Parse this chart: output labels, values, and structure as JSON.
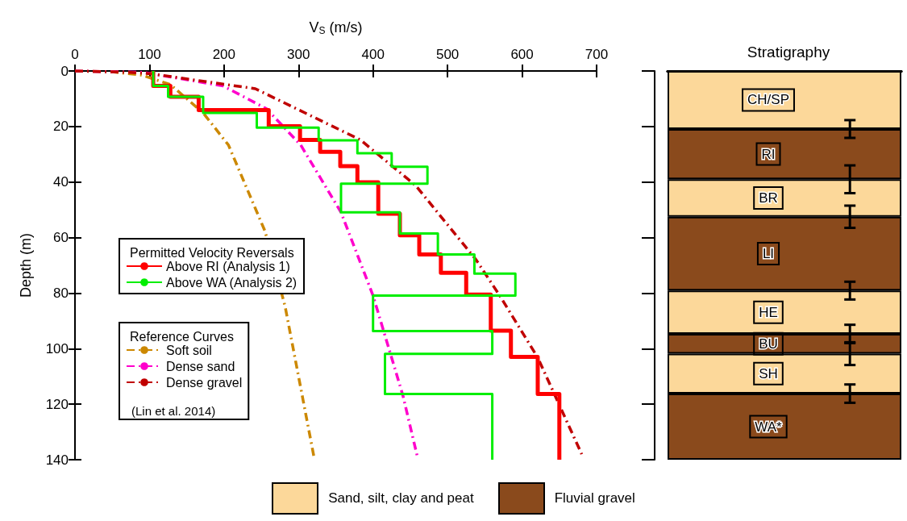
{
  "chart_data": [
    {
      "type": "line",
      "xlabel": "V$_{S}$ (m/s)",
      "ylabel": "Depth (m)",
      "xlim": [
        0,
        700
      ],
      "xticks": [
        0,
        100,
        200,
        300,
        400,
        500,
        600,
        700
      ],
      "ylim": [
        140,
        0
      ],
      "yticks": [
        0,
        20,
        40,
        60,
        80,
        100,
        120,
        140
      ],
      "grid": false,
      "marker": "none",
      "legend": "left",
      "legend_title": "Permitted Velocity Reversals",
      "annotations": [
        "Reference Curves",
        "(Lin et al. 2014)"
      ],
      "series": [
        {
          "name": "Above RI (Analysis 1)",
          "color": "#ff0000",
          "line_style": "solid",
          "x": [
            105,
            105,
            128,
            128,
            166,
            166,
            260,
            260,
            302,
            302,
            329,
            329,
            356,
            356,
            379,
            379,
            407,
            407,
            436,
            436,
            462,
            462,
            491,
            491,
            525,
            525,
            558,
            558,
            585,
            585,
            621,
            621,
            650,
            650
          ],
          "values": [
            0,
            5.4,
            5.4,
            9.3,
            9.3,
            14.1,
            14.1,
            19.9,
            19.9,
            24.8,
            24.8,
            29.1,
            29.1,
            34.3,
            34.3,
            40.1,
            40.1,
            51.4,
            51.4,
            59.2,
            59.2,
            66.1,
            66.1,
            72.7,
            72.7,
            80.5,
            80.5,
            93.5,
            93.5,
            103,
            103,
            116.3,
            116.3,
            140
          ]
        },
        {
          "name": "Above WA (Analysis 2)",
          "color": "#00ee00",
          "line_style": "solid",
          "x": [
            105,
            105,
            125,
            125,
            172,
            172,
            244,
            244,
            327,
            327,
            379,
            379,
            425,
            425,
            473,
            473,
            357,
            357,
            436,
            436,
            487,
            487,
            536,
            536,
            591,
            591,
            400,
            400,
            560,
            560,
            416,
            416,
            560,
            560
          ],
          "values": [
            0,
            5.4,
            5.4,
            9.3,
            9.3,
            15.1,
            15.1,
            20.4,
            20.4,
            25,
            25,
            29.6,
            29.6,
            34.5,
            34.5,
            40.6,
            40.6,
            50.9,
            50.9,
            58.5,
            58.5,
            66.1,
            66.1,
            73,
            73,
            80.9,
            80.9,
            93.7,
            93.7,
            101.9,
            101.9,
            116.3,
            116.3,
            140
          ]
        },
        {
          "name": "Soft soil",
          "color": "#cc8800",
          "line_style": "dashed",
          "x": [
            0,
            50,
            90,
            128,
            172,
            206,
            255,
            282,
            321
          ],
          "values": [
            0,
            0.3,
            1.5,
            4.9,
            15.1,
            26.7,
            57.7,
            84.8,
            139.4
          ]
        },
        {
          "name": "Dense sand",
          "color": "#ff00cc",
          "line_style": "dashed",
          "x": [
            0,
            92,
            199,
            257,
            303,
            357,
            400,
            440,
            460
          ],
          "values": [
            0,
            0.5,
            5.4,
            13.6,
            26.7,
            50.9,
            80.9,
            116.8,
            139.5
          ]
        },
        {
          "name": "Dense gravel",
          "color": "#c00000",
          "line_style": "dashed",
          "x": [
            0,
            75,
            105,
            242,
            383,
            457,
            538,
            570,
            621,
            680
          ],
          "values": [
            0,
            0.5,
            1.1,
            6.4,
            24.8,
            41.2,
            67.9,
            80.9,
            103.2,
            138
          ]
        }
      ]
    },
    {
      "type": "bar",
      "title": "Stratigraphy",
      "stacked": true,
      "categories": [
        null
      ],
      "ylim": [
        140,
        0
      ],
      "yticks": [
        0,
        20,
        40,
        60,
        80,
        100,
        120,
        140
      ],
      "tick_labels": false,
      "legend": "bottom",
      "annotations": [
        "Sand, silt, clay and peat",
        "Fluvial gravel"
      ],
      "series": [
        {
          "name": "CH/SP",
          "color": "#fcd89a",
          "values": [
            20.9
          ],
          "errors": [
            3.2
          ]
        },
        {
          "name": "RI",
          "color": "#8a4a1c",
          "values": [
            18.1
          ],
          "errors": [
            5
          ]
        },
        {
          "name": "BR",
          "color": "#fcd89a",
          "values": [
            13.5
          ],
          "errors": [
            4
          ]
        },
        {
          "name": "LI",
          "color": "#8a4a1c",
          "values": [
            26.6
          ],
          "errors": [
            3.2
          ]
        },
        {
          "name": "HE",
          "color": "#fcd89a",
          "values": [
            15.6
          ],
          "errors": [
            3.3
          ]
        },
        {
          "name": "BU",
          "color": "#8a4a1c",
          "values": [
            7.1
          ],
          "errors": [
            4.1
          ]
        },
        {
          "name": "SH",
          "color": "#fcd89a",
          "values": [
            14.4
          ],
          "errors": [
            3.3
          ]
        },
        {
          "name": "WA*",
          "color": "#8a4a1c",
          "values": [
            23.8
          ]
        }
      ]
    }
  ]
}
